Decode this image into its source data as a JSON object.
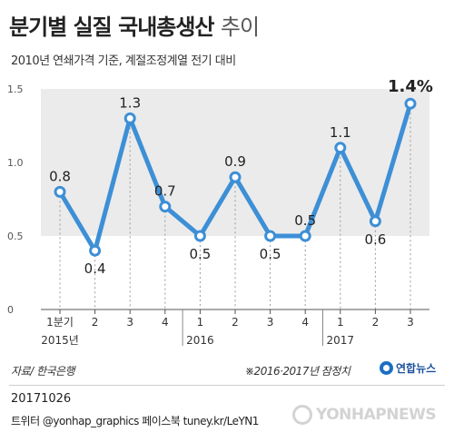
{
  "header": {
    "title_main": "분기별 실질 국내총생산",
    "title_light": "추이",
    "subtitle": "2010년 연쇄가격 기준, 계절조정계열 전기 대비"
  },
  "chart_data": {
    "type": "line",
    "x_tick_labels": [
      "1분기",
      "2",
      "3",
      "4",
      "1",
      "2",
      "3",
      "4",
      "1",
      "2",
      "3"
    ],
    "year_labels": [
      {
        "label": "2015년",
        "at_index": 0
      },
      {
        "label": "2016",
        "at_index": 4
      },
      {
        "label": "2017",
        "at_index": 8
      }
    ],
    "values": [
      0.8,
      0.4,
      1.3,
      0.7,
      0.5,
      0.9,
      0.5,
      0.5,
      1.1,
      0.6,
      1.4
    ],
    "data_labels": [
      "0.8",
      "0.4",
      "1.3",
      "0.7",
      "0.5",
      "0.9",
      "0.5",
      "0.5",
      "1.1",
      "0.6",
      "1.4%"
    ],
    "y_ticks": [
      "1.5",
      "1.0",
      "0.5",
      "0"
    ],
    "y_tick_values": [
      1.5,
      1.0,
      0.5,
      0
    ],
    "ylim": [
      0,
      1.5
    ],
    "grid": true,
    "highlight_last": true,
    "colors": {
      "line": "#3d8fd6",
      "band": "#ebebeb",
      "marker_fill": "#ffffff"
    }
  },
  "footer": {
    "source": "자료/ 한국은행",
    "note": "※2016·2017년 잠정치",
    "brand": "연합뉴스",
    "date": "20171026",
    "twitter": "트위터 @yonhap_graphics  페이스북 tuney.kr/LeYN1",
    "watermark": "YONHAPNEWS"
  }
}
